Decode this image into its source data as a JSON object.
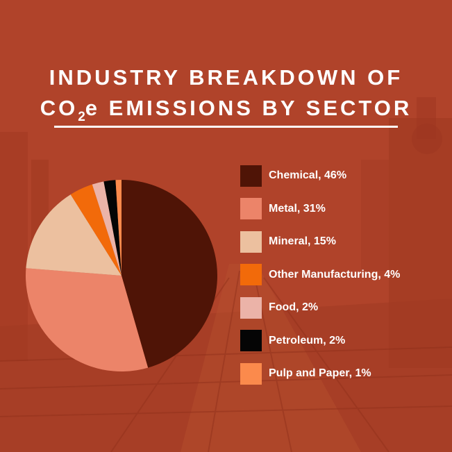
{
  "title": {
    "line1": "INDUSTRY BREAKDOWN OF",
    "line2_prefix": "CO",
    "line2_subscript": "2",
    "line2_suffix": "e EMISSIONS BY SECTOR"
  },
  "colors": {
    "background": "#b4462a",
    "text": "#ffffff"
  },
  "chart_data": {
    "type": "pie",
    "title": "INDUSTRY BREAKDOWN OF CO2e EMISSIONS BY SECTOR",
    "legend_position": "right",
    "slices": [
      {
        "label": "Chemical",
        "value": 46,
        "display": "Chemical, 46%",
        "color": "#4f1406"
      },
      {
        "label": "Metal",
        "value": 31,
        "display": "Metal, 31%",
        "color": "#ec8469"
      },
      {
        "label": "Mineral",
        "value": 15,
        "display": "Mineral, 15%",
        "color": "#ecc09f"
      },
      {
        "label": "Other Manufacturing",
        "value": 4,
        "display": "Other Manufacturing, 4%",
        "color": "#f26a0a"
      },
      {
        "label": "Food",
        "value": 2,
        "display": "Food, 2%",
        "color": "#ebb3a8"
      },
      {
        "label": "Petroleum",
        "value": 2,
        "display": "Petroleum, 2%",
        "color": "#050505"
      },
      {
        "label": "Pulp and Paper",
        "value": 1,
        "display": "Pulp and Paper, 1%",
        "color": "#fb8a4c"
      }
    ]
  }
}
